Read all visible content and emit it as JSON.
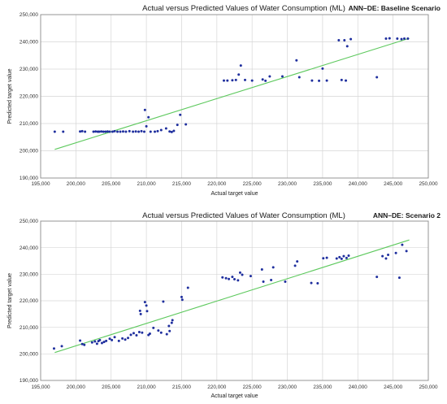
{
  "chart_data": [
    {
      "type": "scatter",
      "title": "Actual versus Predicted Values of Water Consumption (ML)",
      "subtitle": "ANN–DE: Baseline Scenario",
      "xlabel": "Actual target value",
      "ylabel": "Predicted target value",
      "xlim": [
        195000,
        250000
      ],
      "ylim": [
        190000,
        250000
      ],
      "xticks": [
        "195,000",
        "200,000",
        "205,000",
        "210,000",
        "215,000",
        "220,000",
        "225,000",
        "230,000",
        "235,000",
        "240,000",
        "245,000",
        "250,000"
      ],
      "yticks": [
        "250,000",
        "240,000",
        "230,000",
        "220,000",
        "210,000",
        "200,000",
        "190,000"
      ],
      "grid": true,
      "point_color": "#1f2f9e",
      "fit_color": "#5ec95e",
      "series": [
        {
          "points": [
            [
              197000,
              207000
            ],
            [
              198200,
              207000
            ],
            [
              200600,
              207100
            ],
            [
              200900,
              207200
            ],
            [
              201300,
              207000
            ],
            [
              202500,
              207000
            ],
            [
              202800,
              207100
            ],
            [
              203100,
              207000
            ],
            [
              203300,
              207000
            ],
            [
              203600,
              207100
            ],
            [
              203900,
              207000
            ],
            [
              204200,
              207000
            ],
            [
              204500,
              207100
            ],
            [
              204800,
              207000
            ],
            [
              205200,
              207000
            ],
            [
              205500,
              207200
            ],
            [
              205900,
              207000
            ],
            [
              206300,
              207000
            ],
            [
              206700,
              207100
            ],
            [
              207100,
              207000
            ],
            [
              207600,
              207200
            ],
            [
              208100,
              207000
            ],
            [
              208500,
              207100
            ],
            [
              208900,
              207000
            ],
            [
              209300,
              207200
            ],
            [
              209700,
              207000
            ],
            [
              209800,
              215000
            ],
            [
              210000,
              209000
            ],
            [
              210300,
              212300
            ],
            [
              210600,
              207000
            ],
            [
              211200,
              207000
            ],
            [
              211600,
              207200
            ],
            [
              212100,
              207600
            ],
            [
              212800,
              208200
            ],
            [
              213300,
              207100
            ],
            [
              213600,
              206900
            ],
            [
              213900,
              207300
            ],
            [
              214400,
              209500
            ],
            [
              214800,
              213200
            ],
            [
              215600,
              209700
            ],
            [
              221000,
              225800
            ],
            [
              221500,
              225800
            ],
            [
              222200,
              225900
            ],
            [
              222700,
              226000
            ],
            [
              223100,
              228000
            ],
            [
              223400,
              231300
            ],
            [
              224000,
              226000
            ],
            [
              225000,
              225800
            ],
            [
              226500,
              226200
            ],
            [
              226900,
              225700
            ],
            [
              227500,
              227300
            ],
            [
              229300,
              227300
            ],
            [
              231300,
              233200
            ],
            [
              231700,
              227000
            ],
            [
              233500,
              225800
            ],
            [
              234500,
              225700
            ],
            [
              235000,
              230200
            ],
            [
              235600,
              225800
            ],
            [
              237300,
              240600
            ],
            [
              237700,
              226000
            ],
            [
              238100,
              240600
            ],
            [
              238300,
              225800
            ],
            [
              238500,
              238400
            ],
            [
              239000,
              241000
            ],
            [
              242700,
              227000
            ],
            [
              244000,
              241200
            ],
            [
              244500,
              241300
            ],
            [
              245600,
              241200
            ],
            [
              246200,
              241000
            ],
            [
              246600,
              241200
            ],
            [
              247100,
              241200
            ]
          ]
        }
      ],
      "fit_line": {
        "x": [
          197000,
          247300
        ],
        "y": [
          200500,
          241300
        ]
      }
    },
    {
      "type": "scatter",
      "title": "Actual versus Predicted Values of Water Consumption (ML)",
      "subtitle": "ANN–DE: Scenario 2",
      "xlabel": "Actual target value",
      "ylabel": "Predicted target value",
      "xlim": [
        195000,
        250000
      ],
      "ylim": [
        190000,
        250000
      ],
      "xticks": [
        "195,000",
        "200,000",
        "205,000",
        "210,000",
        "215,000",
        "220,000",
        "225,000",
        "230,000",
        "235,000",
        "240,000",
        "245,000",
        "250,000"
      ],
      "yticks": [
        "250,000",
        "240,000",
        "230,000",
        "220,000",
        "210,000",
        "200,000",
        "190,000"
      ],
      "grid": true,
      "point_color": "#1f2f9e",
      "fit_color": "#5ec95e",
      "series": [
        {
          "points": [
            [
              196900,
              202000
            ],
            [
              198000,
              202900
            ],
            [
              200600,
              205000
            ],
            [
              200900,
              203700
            ],
            [
              201200,
              203400
            ],
            [
              202300,
              204300
            ],
            [
              202700,
              204700
            ],
            [
              203000,
              203800
            ],
            [
              203200,
              204800
            ],
            [
              203400,
              205200
            ],
            [
              203700,
              204100
            ],
            [
              204000,
              204500
            ],
            [
              204300,
              204900
            ],
            [
              204800,
              205700
            ],
            [
              205100,
              205200
            ],
            [
              205500,
              206300
            ],
            [
              206100,
              204900
            ],
            [
              206600,
              205800
            ],
            [
              207000,
              205400
            ],
            [
              207400,
              206000
            ],
            [
              207800,
              207200
            ],
            [
              208200,
              207800
            ],
            [
              208600,
              207000
            ],
            [
              209000,
              208200
            ],
            [
              209100,
              216200
            ],
            [
              209200,
              215000
            ],
            [
              209400,
              208000
            ],
            [
              209800,
              219500
            ],
            [
              210000,
              218200
            ],
            [
              210100,
              216100
            ],
            [
              210300,
              207100
            ],
            [
              210500,
              207600
            ],
            [
              211000,
              209800
            ],
            [
              211700,
              208800
            ],
            [
              212100,
              208000
            ],
            [
              212400,
              219700
            ],
            [
              212900,
              207400
            ],
            [
              213200,
              210500
            ],
            [
              213300,
              208600
            ],
            [
              213600,
              211700
            ],
            [
              213700,
              212700
            ],
            [
              215000,
              221400
            ],
            [
              215100,
              220400
            ],
            [
              215900,
              224900
            ],
            [
              220800,
              228800
            ],
            [
              221300,
              228500
            ],
            [
              221700,
              228200
            ],
            [
              222200,
              229000
            ],
            [
              222500,
              228100
            ],
            [
              223000,
              227700
            ],
            [
              223300,
              230600
            ],
            [
              223600,
              229800
            ],
            [
              224800,
              229300
            ],
            [
              226400,
              231800
            ],
            [
              226600,
              227200
            ],
            [
              227700,
              227800
            ],
            [
              228000,
              232600
            ],
            [
              229700,
              227200
            ],
            [
              231100,
              233200
            ],
            [
              231400,
              234800
            ],
            [
              233400,
              226700
            ],
            [
              234300,
              226600
            ],
            [
              235100,
              236000
            ],
            [
              235600,
              236200
            ],
            [
              237000,
              235900
            ],
            [
              237400,
              236400
            ],
            [
              237700,
              235800
            ],
            [
              238000,
              236800
            ],
            [
              238400,
              236100
            ],
            [
              238700,
              237000
            ],
            [
              242700,
              229000
            ],
            [
              243500,
              236800
            ],
            [
              244000,
              235900
            ],
            [
              244300,
              237300
            ],
            [
              245400,
              238000
            ],
            [
              245900,
              228700
            ],
            [
              246300,
              241100
            ],
            [
              246900,
              238700
            ]
          ]
        }
      ],
      "fit_line": {
        "x": [
          197000,
          247300
        ],
        "y": [
          200500,
          242900
        ]
      }
    }
  ]
}
